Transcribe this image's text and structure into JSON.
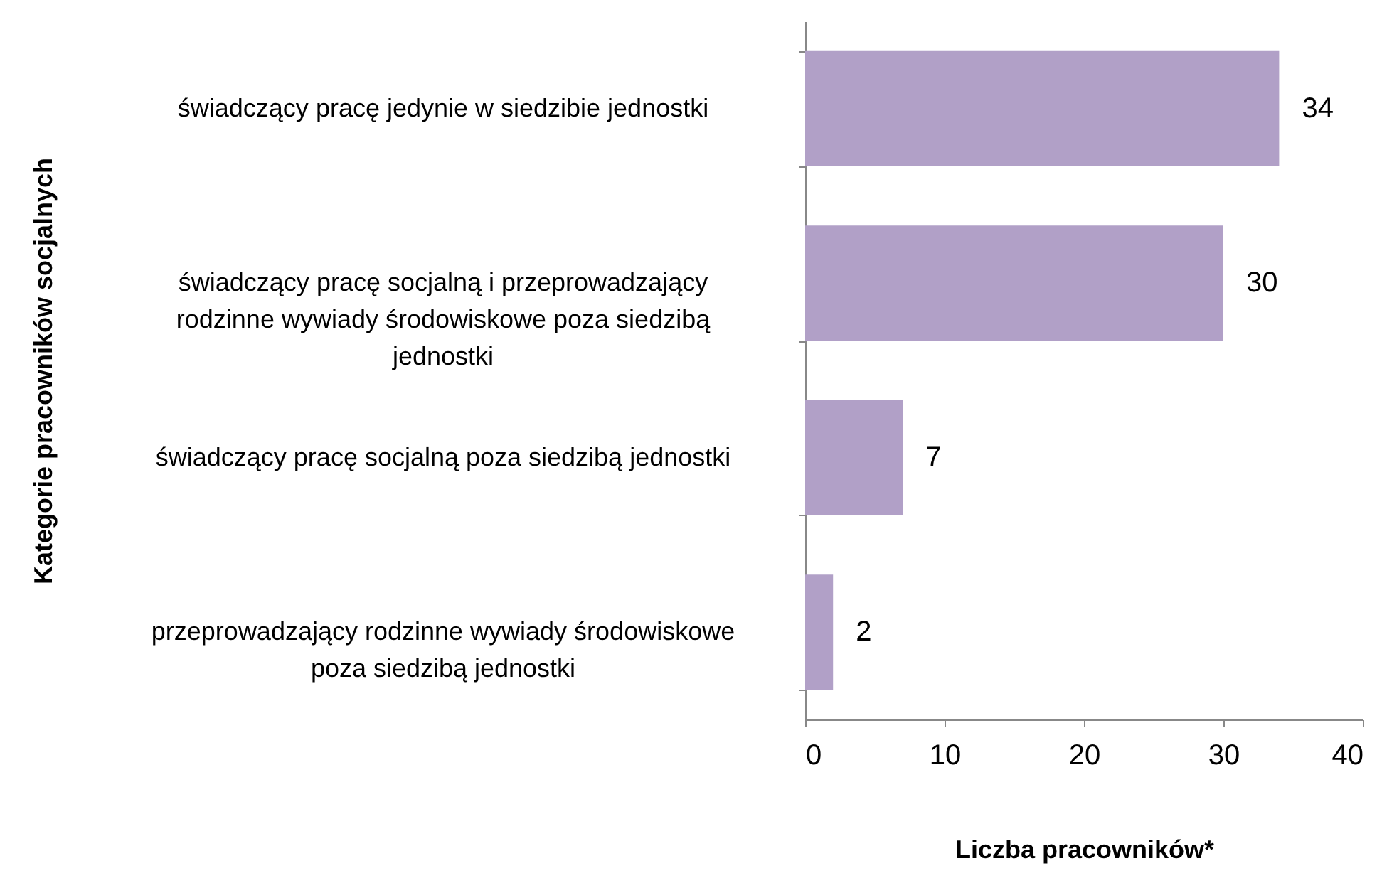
{
  "chart_data": {
    "type": "bar",
    "orientation": "horizontal",
    "xlabel": "Liczba pracowników*",
    "ylabel": "Kategorie pracowników socjalnych",
    "categories": [
      "świadczący pracę jedynie w siedzibie jednostki",
      "świadczący pracę socjalną i przeprowadzający rodzinne wywiady środowiskowe poza siedzibą jednostki",
      "świadczący pracę socjalną poza siedzibą jednostki",
      "przeprowadzający rodzinne wywiady środowiskowe poza siedzibą jednostki"
    ],
    "values": [
      34,
      30,
      7,
      2
    ],
    "color": "#b1a0c7",
    "data_labels": true,
    "xlim": [
      0,
      40
    ],
    "xticks": [
      0,
      10,
      20,
      30,
      40
    ],
    "grid": false
  }
}
